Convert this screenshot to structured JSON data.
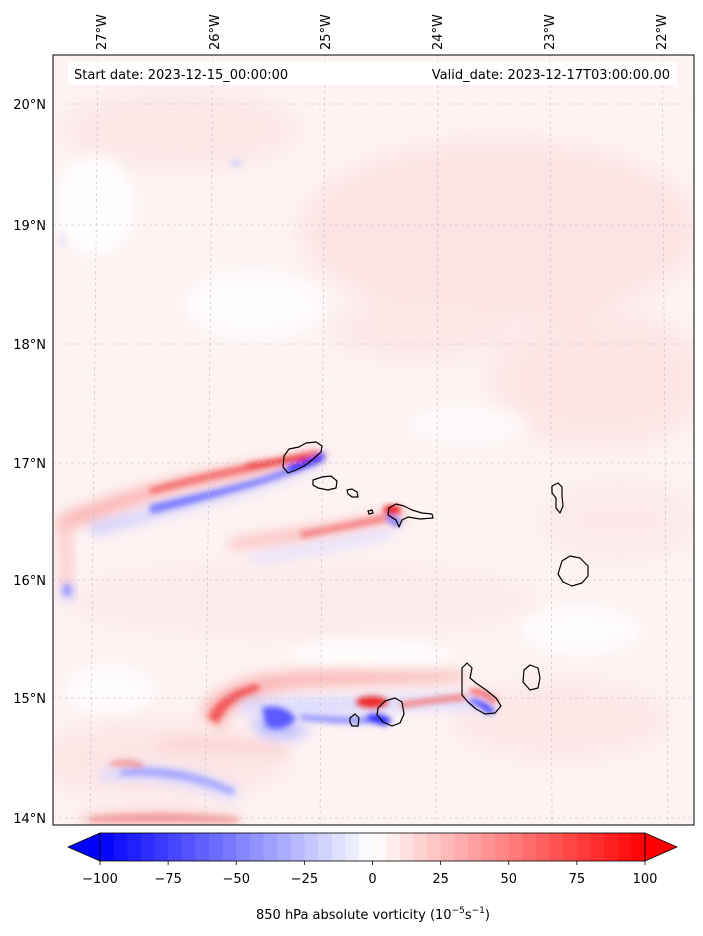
{
  "header": {
    "start_label": "Start date: 2023-12-15_00:00:00",
    "valid_label": "Valid_date: 2023-12-17T03:00:00.00"
  },
  "axes": {
    "lon_labels": [
      "27°W",
      "26°W",
      "25°W",
      "24°W",
      "23°W",
      "22°W"
    ],
    "lat_labels": [
      "20°N",
      "19°N",
      "18°N",
      "17°N",
      "16°N",
      "15°N",
      "14°N"
    ]
  },
  "colorbar": {
    "ticks": [
      "−100",
      "−75",
      "−50",
      "−25",
      "0",
      "25",
      "50",
      "75",
      "100"
    ],
    "title_main": "850 hPa absolute vorticity (10",
    "title_exp1": "−5",
    "title_mid": "s",
    "title_exp2": "−1",
    "title_end": ")",
    "vmin": -100,
    "vmax": 100,
    "neg_color": "#0000ff",
    "pos_color": "#ff0000",
    "mid_color": "#ffffff"
  },
  "colors": {
    "background_tint": "#fdf2f2",
    "coastline": "#000000",
    "grid": "#bbbbbb"
  }
}
